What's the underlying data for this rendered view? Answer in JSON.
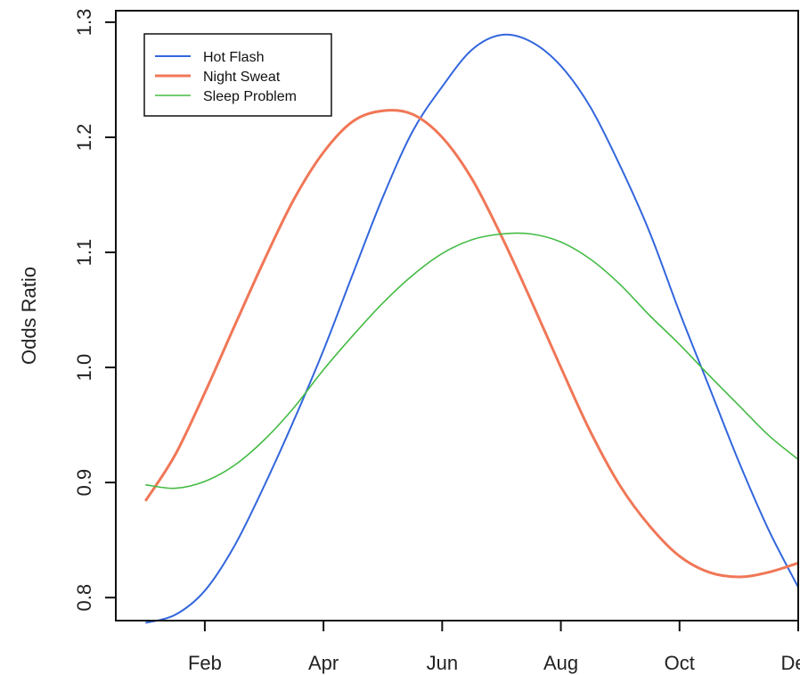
{
  "chart_data": {
    "type": "line",
    "xlabel": "",
    "ylabel": "Odds Ratio",
    "xlim": [
      0.5,
      12.0
    ],
    "ylim": [
      0.78,
      1.31
    ],
    "x_ticks": [
      {
        "value": 2,
        "label": "Feb"
      },
      {
        "value": 4,
        "label": "Apr"
      },
      {
        "value": 6,
        "label": "Jun"
      },
      {
        "value": 8,
        "label": "Aug"
      },
      {
        "value": 10,
        "label": "Oct"
      },
      {
        "value": 12,
        "label": "Dec"
      }
    ],
    "y_ticks": [
      {
        "value": 0.8,
        "label": "0.8"
      },
      {
        "value": 0.9,
        "label": "0.9"
      },
      {
        "value": 1.0,
        "label": "1.0"
      },
      {
        "value": 1.1,
        "label": "1.1"
      },
      {
        "value": 1.2,
        "label": "1.2"
      },
      {
        "value": 1.3,
        "label": "1.3"
      }
    ],
    "legend_position": "top-left",
    "grid": false,
    "series": [
      {
        "name": "Hot Flash",
        "color": "#3366dd",
        "x": [
          1.0,
          1.5,
          2.0,
          2.5,
          3.0,
          3.5,
          4.0,
          4.5,
          5.0,
          5.5,
          6.0,
          6.5,
          7.0,
          7.5,
          8.0,
          8.5,
          9.0,
          9.5,
          10.0,
          10.5,
          11.0,
          11.5,
          12.0
        ],
        "y": [
          0.778,
          0.785,
          0.806,
          0.845,
          0.897,
          0.954,
          1.015,
          1.082,
          1.148,
          1.205,
          1.244,
          1.276,
          1.289,
          1.283,
          1.262,
          1.226,
          1.175,
          1.117,
          1.048,
          0.983,
          0.918,
          0.859,
          0.809
        ]
      },
      {
        "name": "Night Sweat",
        "color": "#f07757",
        "x": [
          1.0,
          1.5,
          2.0,
          2.5,
          3.0,
          3.5,
          4.0,
          4.5,
          5.0,
          5.5,
          6.0,
          6.5,
          7.0,
          7.5,
          8.0,
          8.5,
          9.0,
          9.5,
          10.0,
          10.5,
          11.0,
          11.5,
          12.0
        ],
        "y": [
          0.884,
          0.924,
          0.978,
          1.036,
          1.093,
          1.146,
          1.187,
          1.214,
          1.223,
          1.22,
          1.2,
          1.164,
          1.114,
          1.058,
          1.0,
          0.944,
          0.897,
          0.862,
          0.836,
          0.822,
          0.818,
          0.822,
          0.83
        ]
      },
      {
        "name": "Sleep Problem",
        "color": "#44bb44",
        "x": [
          1.0,
          1.5,
          2.0,
          2.5,
          3.0,
          3.5,
          4.0,
          4.5,
          5.0,
          5.5,
          6.0,
          6.5,
          7.0,
          7.5,
          8.0,
          8.5,
          9.0,
          9.5,
          10.0,
          10.5,
          11.0,
          11.5,
          12.0
        ],
        "y": [
          0.898,
          0.895,
          0.901,
          0.915,
          0.937,
          0.965,
          0.998,
          1.028,
          1.056,
          1.08,
          1.099,
          1.111,
          1.116,
          1.116,
          1.109,
          1.094,
          1.072,
          1.045,
          1.02,
          0.993,
          0.967,
          0.941,
          0.92
        ]
      }
    ]
  }
}
